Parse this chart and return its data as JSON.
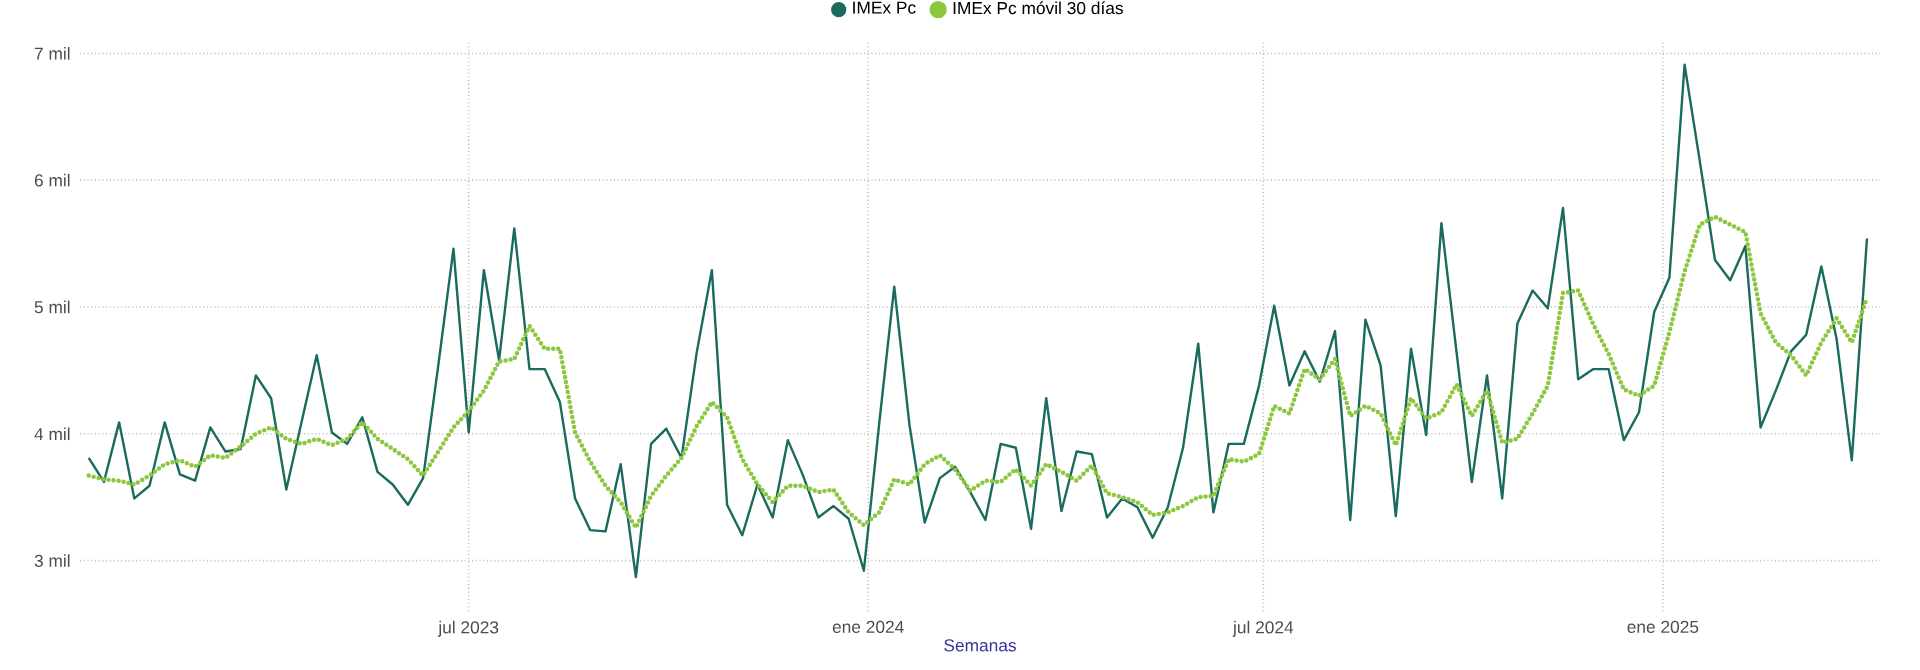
{
  "chart_data": {
    "type": "line",
    "xlabel": "Semanas",
    "legend": "top",
    "grid": true,
    "x": [
      "2023-01-07",
      "2023-01-14",
      "2023-01-21",
      "2023-01-28",
      "2023-02-04",
      "2023-02-11",
      "2023-02-18",
      "2023-02-25",
      "2023-03-04",
      "2023-03-11",
      "2023-03-18",
      "2023-03-25",
      "2023-04-01",
      "2023-04-08",
      "2023-04-15",
      "2023-04-22",
      "2023-04-29",
      "2023-05-06",
      "2023-05-13",
      "2023-05-20",
      "2023-05-27",
      "2023-06-03",
      "2023-06-10",
      "2023-06-17",
      "2023-06-24",
      "2023-07-01",
      "2023-07-08",
      "2023-07-15",
      "2023-07-22",
      "2023-07-29",
      "2023-08-05",
      "2023-08-12",
      "2023-08-19",
      "2023-08-26",
      "2023-09-02",
      "2023-09-09",
      "2023-09-16",
      "2023-09-23",
      "2023-09-30",
      "2023-10-07",
      "2023-10-14",
      "2023-10-21",
      "2023-10-28",
      "2023-11-04",
      "2023-11-11",
      "2023-11-18",
      "2023-11-25",
      "2023-12-02",
      "2023-12-09",
      "2023-12-16",
      "2023-12-23",
      "2023-12-30",
      "2024-01-06",
      "2024-01-13",
      "2024-01-20",
      "2024-01-27",
      "2024-02-03",
      "2024-02-10",
      "2024-02-17",
      "2024-02-24",
      "2024-03-02",
      "2024-03-09",
      "2024-03-16",
      "2024-03-23",
      "2024-03-30",
      "2024-04-06",
      "2024-04-13",
      "2024-04-20",
      "2024-04-27",
      "2024-05-04",
      "2024-05-11",
      "2024-05-18",
      "2024-05-25",
      "2024-06-01",
      "2024-06-08",
      "2024-06-15",
      "2024-06-22",
      "2024-06-29",
      "2024-07-06",
      "2024-07-13",
      "2024-07-20",
      "2024-07-27",
      "2024-08-03",
      "2024-08-10",
      "2024-08-17",
      "2024-08-24",
      "2024-08-31",
      "2024-09-07",
      "2024-09-14",
      "2024-09-21",
      "2024-09-28",
      "2024-10-05",
      "2024-10-12",
      "2024-10-19",
      "2024-10-26",
      "2024-11-02",
      "2024-11-09",
      "2024-11-16",
      "2024-11-23",
      "2024-11-30",
      "2024-12-07",
      "2024-12-14",
      "2024-12-21",
      "2024-12-28",
      "2025-01-04",
      "2025-01-11",
      "2025-01-18",
      "2025-01-25",
      "2025-02-01",
      "2025-02-08",
      "2025-02-15",
      "2025-02-22",
      "2025-03-01",
      "2025-03-08",
      "2025-03-15",
      "2025-03-22",
      "2025-03-29",
      "2025-04-05"
    ],
    "xlim": [
      "2023-01-03",
      "2025-04-11"
    ],
    "xticks": [
      {
        "value": "2023-07-01",
        "label": "jul 2023"
      },
      {
        "value": "2024-01-01",
        "label": "ene 2024"
      },
      {
        "value": "2024-07-01",
        "label": "jul 2024"
      },
      {
        "value": "2025-01-01",
        "label": "ene 2025"
      }
    ],
    "ylim": [
      2.6,
      7.1
    ],
    "yticks": [
      {
        "value": 3,
        "label": "3 mil"
      },
      {
        "value": 4,
        "label": "4 mil"
      },
      {
        "value": 5,
        "label": "5 mil"
      },
      {
        "value": 6,
        "label": "6 mil"
      },
      {
        "value": 7,
        "label": "7 mil"
      }
    ],
    "series": [
      {
        "name": "IMEx Pc",
        "color": "#1a6b5e",
        "line_style": "solid",
        "values": [
          3.81,
          3.62,
          4.09,
          3.49,
          3.59,
          4.09,
          3.68,
          3.63,
          4.05,
          3.86,
          3.88,
          4.46,
          4.28,
          3.56,
          4.09,
          4.62,
          4.01,
          3.92,
          4.13,
          3.7,
          3.6,
          3.44,
          3.65,
          4.54,
          5.46,
          4.01,
          5.29,
          4.58,
          5.62,
          4.51,
          4.51,
          4.25,
          3.49,
          3.24,
          3.23,
          3.76,
          2.87,
          3.92,
          4.04,
          3.81,
          4.64,
          5.29,
          3.44,
          3.2,
          3.6,
          3.34,
          3.95,
          3.67,
          3.34,
          3.43,
          3.33,
          2.92,
          4.07,
          5.16,
          4.07,
          3.3,
          3.65,
          3.74,
          3.54,
          3.32,
          3.92,
          3.89,
          3.25,
          4.28,
          3.39,
          3.86,
          3.84,
          3.34,
          3.49,
          3.42,
          3.18,
          3.42,
          3.89,
          4.71,
          3.38,
          3.92,
          3.92,
          4.38,
          5.01,
          4.38,
          4.65,
          4.41,
          4.81,
          3.32,
          4.9,
          4.54,
          3.35,
          4.67,
          3.99,
          5.66,
          4.64,
          3.62,
          4.46,
          3.49,
          4.87,
          5.13,
          4.99,
          5.78,
          4.43,
          4.51,
          4.51,
          3.95,
          4.17,
          4.96,
          5.23,
          6.91,
          6.15,
          5.37,
          5.21,
          5.48,
          4.05,
          4.34,
          4.65,
          4.78,
          5.32,
          4.75,
          3.79,
          5.54
        ]
      },
      {
        "name": "IMEx Pc móvil 30 días",
        "color": "#8dc63f",
        "line_style": "dotted",
        "values": [
          3.67,
          3.64,
          3.63,
          3.6,
          3.67,
          3.76,
          3.79,
          3.74,
          3.83,
          3.81,
          3.9,
          4.0,
          4.05,
          3.96,
          3.92,
          3.96,
          3.91,
          3.96,
          4.09,
          3.96,
          3.88,
          3.8,
          3.67,
          3.86,
          4.05,
          4.18,
          4.34,
          4.57,
          4.59,
          4.85,
          4.67,
          4.67,
          4.01,
          3.78,
          3.59,
          3.46,
          3.26,
          3.51,
          3.67,
          3.81,
          4.06,
          4.25,
          4.13,
          3.8,
          3.6,
          3.46,
          3.59,
          3.59,
          3.54,
          3.56,
          3.38,
          3.28,
          3.38,
          3.64,
          3.6,
          3.76,
          3.83,
          3.72,
          3.55,
          3.63,
          3.62,
          3.72,
          3.59,
          3.76,
          3.7,
          3.63,
          3.75,
          3.53,
          3.5,
          3.46,
          3.36,
          3.38,
          3.43,
          3.5,
          3.51,
          3.8,
          3.78,
          3.84,
          4.22,
          4.16,
          4.51,
          4.43,
          4.59,
          4.14,
          4.22,
          4.16,
          3.91,
          4.28,
          4.12,
          4.17,
          4.39,
          4.14,
          4.34,
          3.93,
          3.96,
          4.16,
          4.38,
          5.11,
          5.13,
          4.86,
          4.63,
          4.35,
          4.3,
          4.38,
          4.8,
          5.28,
          5.65,
          5.71,
          5.65,
          5.59,
          4.95,
          4.72,
          4.62,
          4.46,
          4.72,
          4.91,
          4.72,
          5.07
        ]
      }
    ]
  }
}
